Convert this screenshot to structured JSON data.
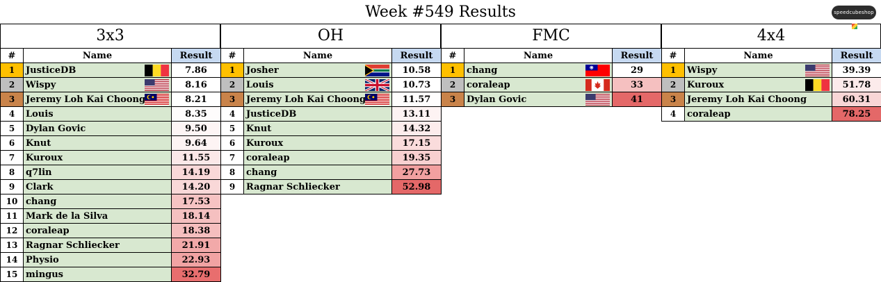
{
  "title": "Week #549 Results",
  "logo_text": "speedcubeshop",
  "headers": {
    "rank": "#",
    "name": "Name",
    "result": "Result"
  },
  "events": [
    {
      "name": "3x3",
      "rows": [
        {
          "rank": "1",
          "name": "JusticeDB",
          "flag": "be",
          "result": "7.86",
          "color": "#ffffff"
        },
        {
          "rank": "2",
          "name": "Wispy",
          "flag": "us",
          "result": "8.16",
          "color": "#ffffff"
        },
        {
          "rank": "3",
          "name": "Jeremy Loh Kai Choong",
          "flag": "my",
          "result": "8.21",
          "color": "#ffffff"
        },
        {
          "rank": "4",
          "name": "Louis",
          "flag": "",
          "result": "8.35",
          "color": "#fefcfc"
        },
        {
          "rank": "5",
          "name": "Dylan Govic",
          "flag": "",
          "result": "9.50",
          "color": "#fdf5f5"
        },
        {
          "rank": "6",
          "name": "Knut",
          "flag": "",
          "result": "9.64",
          "color": "#fdf4f4"
        },
        {
          "rank": "7",
          "name": "Kuroux",
          "flag": "",
          "result": "11.55",
          "color": "#fbe8e8"
        },
        {
          "rank": "8",
          "name": "q7lin",
          "flag": "",
          "result": "14.19",
          "color": "#f9d8d8"
        },
        {
          "rank": "9",
          "name": "Clark",
          "flag": "",
          "result": "14.20",
          "color": "#f9d8d8"
        },
        {
          "rank": "10",
          "name": "chang",
          "flag": "",
          "result": "17.53",
          "color": "#f6c3c3"
        },
        {
          "rank": "11",
          "name": "Mark de la Silva",
          "flag": "",
          "result": "18.14",
          "color": "#f5c0c0"
        },
        {
          "rank": "12",
          "name": "coraleap",
          "flag": "",
          "result": "18.38",
          "color": "#f5bebe"
        },
        {
          "rank": "13",
          "name": "Ragnar Schliecker",
          "flag": "",
          "result": "21.91",
          "color": "#f2a9a9"
        },
        {
          "rank": "14",
          "name": "Physio",
          "flag": "",
          "result": "22.93",
          "color": "#f1a3a3"
        },
        {
          "rank": "15",
          "name": "mingus",
          "flag": "",
          "result": "32.79",
          "color": "#e86e6e"
        }
      ]
    },
    {
      "name": "OH",
      "rows": [
        {
          "rank": "1",
          "name": "Josher",
          "flag": "za",
          "result": "10.58",
          "color": "#ffffff"
        },
        {
          "rank": "2",
          "name": "Louis",
          "flag": "gb",
          "result": "10.73",
          "color": "#ffffff"
        },
        {
          "rank": "3",
          "name": "Jeremy Loh Kai Choong",
          "flag": "my",
          "result": "11.57",
          "color": "#fefdfd"
        },
        {
          "rank": "4",
          "name": "JusticeDB",
          "flag": "",
          "result": "13.11",
          "color": "#fdf3f3"
        },
        {
          "rank": "5",
          "name": "Knut",
          "flag": "",
          "result": "14.32",
          "color": "#fcecec"
        },
        {
          "rank": "6",
          "name": "Kuroux",
          "flag": "",
          "result": "17.15",
          "color": "#fadcdc"
        },
        {
          "rank": "7",
          "name": "coraleap",
          "flag": "",
          "result": "19.35",
          "color": "#f8d0d0"
        },
        {
          "rank": "8",
          "name": "chang",
          "flag": "",
          "result": "27.73",
          "color": "#f2a0a0"
        },
        {
          "rank": "9",
          "name": "Ragnar Schliecker",
          "flag": "",
          "result": "52.98",
          "color": "#e46868"
        }
      ]
    },
    {
      "name": "FMC",
      "rows": [
        {
          "rank": "1",
          "name": "chang",
          "flag": "tw",
          "result": "29",
          "color": "#ffffff"
        },
        {
          "rank": "2",
          "name": "coraleap",
          "flag": "ca",
          "result": "33",
          "color": "#f5c0c0"
        },
        {
          "rank": "3",
          "name": "Dylan Govic",
          "flag": "us",
          "result": "41",
          "color": "#e46868"
        }
      ]
    },
    {
      "name": "4x4",
      "rows": [
        {
          "rank": "1",
          "name": "Wispy",
          "flag": "us",
          "result": "39.39",
          "color": "#ffffff"
        },
        {
          "rank": "2",
          "name": "Kuroux",
          "flag": "be",
          "result": "51.78",
          "color": "#fcebeb"
        },
        {
          "rank": "3",
          "name": "Jeremy Loh Kai Choong",
          "flag": "",
          "result": "60.31",
          "color": "#f8d6d6"
        },
        {
          "rank": "4",
          "name": "coraleap",
          "flag": "",
          "result": "78.25",
          "color": "#e46868"
        }
      ]
    }
  ]
}
